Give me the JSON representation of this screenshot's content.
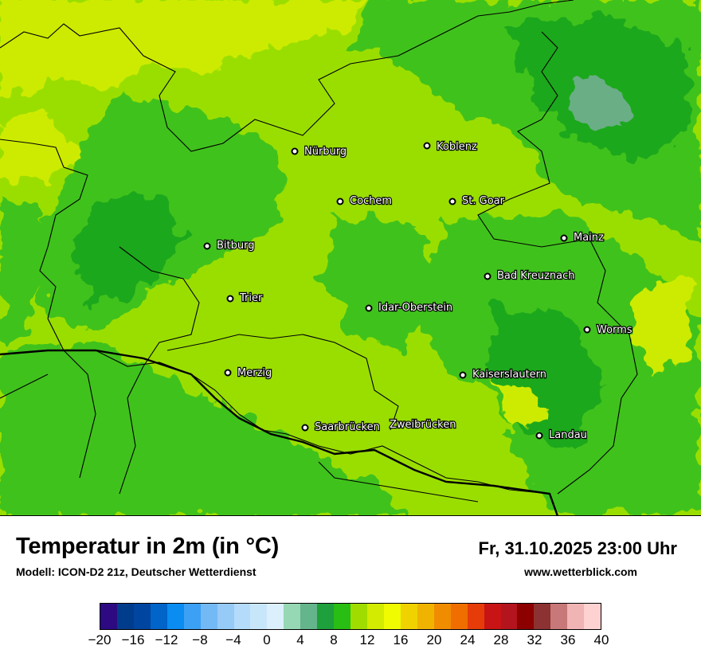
{
  "map": {
    "cities": [
      {
        "name": "Nürburg"
      },
      {
        "name": "Koblenz"
      },
      {
        "name": "Cochem"
      },
      {
        "name": "St. Goar"
      },
      {
        "name": "Mainz"
      },
      {
        "name": "Bitburg"
      },
      {
        "name": "Bad Kreuznach"
      },
      {
        "name": "Trier"
      },
      {
        "name": "Idar-Oberstein"
      },
      {
        "name": "Worms"
      },
      {
        "name": "Merzig"
      },
      {
        "name": "Kaiserslautern"
      },
      {
        "name": "Saarbrücken"
      },
      {
        "name": "Zweibrücken"
      },
      {
        "name": "Landau"
      }
    ],
    "colors": {
      "yellow_green": "#cdeb00",
      "light_green": "#9ade00",
      "mid_green": "#3fc21a",
      "dark_green": "#1ea81e",
      "teal": "#6aae86",
      "border": "#000000"
    }
  },
  "footer": {
    "title": "Temperatur in 2m (in °C)",
    "model": "Modell: ICON-D2 21z, Deutscher Wetterdienst",
    "datetime": "Fr, 31.10.2025 23:00 Uhr",
    "website": "www.wetterblick.com"
  },
  "legend": {
    "colors": [
      "#2d0a82",
      "#003c8c",
      "#0046a0",
      "#0064c8",
      "#0a8cf0",
      "#3ca0f5",
      "#73b9f5",
      "#96caf7",
      "#b4dbfa",
      "#c8e6fa",
      "#dceffc",
      "#96d7b4",
      "#64b48c",
      "#1ea03c",
      "#28be14",
      "#a0dc00",
      "#d2eb00",
      "#f0fa00",
      "#f0d200",
      "#f0b400",
      "#f08c00",
      "#f06e00",
      "#e63c0a",
      "#c81414",
      "#b4141e",
      "#8c0000",
      "#8c3232",
      "#c87878",
      "#f0b4b4",
      "#ffd2d2"
    ],
    "ticks": [
      "−20",
      "−16",
      "−12",
      "−8",
      "−4",
      "0",
      "4",
      "8",
      "12",
      "16",
      "20",
      "24",
      "28",
      "32",
      "36",
      "40"
    ]
  }
}
